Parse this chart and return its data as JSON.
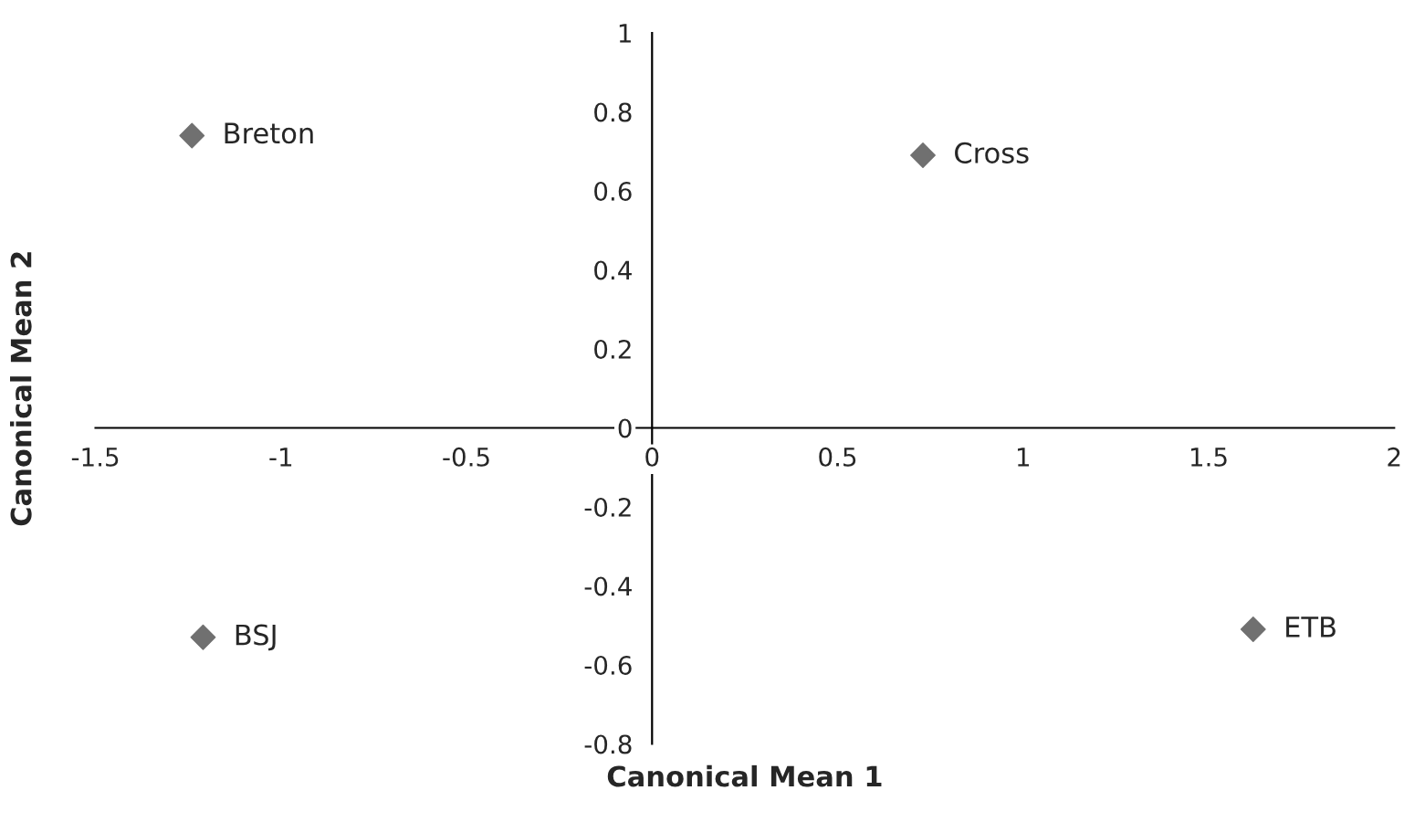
{
  "chart_data": {
    "type": "scatter",
    "xlabel": "Canonical Mean 1",
    "ylabel": "Canonical Mean 2",
    "x": [
      -1.24,
      0.73,
      1.62,
      -1.21
    ],
    "series": [
      {
        "color": "#707070",
        "values": [
          0.74,
          0.69,
          -0.51,
          -0.53
        ]
      }
    ],
    "marker": "diamond",
    "grid": false,
    "legend": false,
    "xlim": [
      -1.5,
      2
    ],
    "xticks": [
      -1.5,
      -1,
      -0.5,
      0,
      0.5,
      1,
      1.5,
      2
    ],
    "ylim": [
      -0.8,
      1
    ],
    "yticks": [
      -0.8,
      -0.6,
      -0.4,
      -0.2,
      0,
      0.2,
      0.4,
      0.6,
      0.8,
      1
    ],
    "annotations": [
      {
        "text": "Breton",
        "x": -1.24,
        "y": 0.74
      },
      {
        "text": "Cross",
        "x": 0.73,
        "y": 0.69
      },
      {
        "text": "ETB",
        "x": 1.62,
        "y": -0.51
      },
      {
        "text": "BSJ",
        "x": -1.21,
        "y": -0.53
      }
    ]
  }
}
